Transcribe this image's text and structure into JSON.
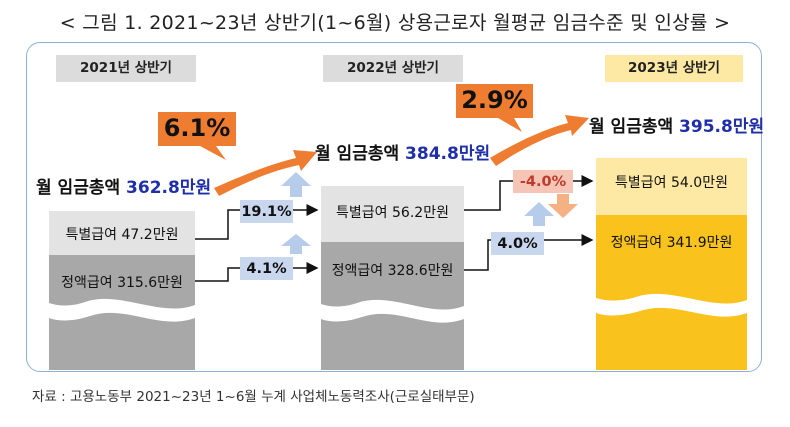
{
  "title": "< 그림 1. 2021~23년 상반기(1~6월) 상용근로자 월평균 임금수준 및 인상률 >",
  "source": "자료 : 고용노동부 2021~23년 1~6월 누계 사업체노동력조사(근로실태부문)",
  "total_prefix": "월 임금총액",
  "years": [
    {
      "label": "2021년 상반기",
      "total": "362.8만원",
      "special": "특별급여 47.2만원",
      "regular": "정액급여 315.6만원"
    },
    {
      "label": "2022년 상반기",
      "total": "384.8만원",
      "special": "특별급여 56.2만원",
      "regular": "정액급여 328.6만원"
    },
    {
      "label": "2023년 상반기",
      "total": "395.8만원",
      "special": "특별급여 54.0만원",
      "regular": "정액급여 341.9만원"
    }
  ],
  "changes": {
    "total_2122": "6.1%",
    "total_2223": "2.9%",
    "special_2122": "19.1%",
    "regular_2122": "4.1%",
    "special_2223": "-4.0%",
    "regular_2223": "4.0%"
  },
  "colors": {
    "light_gray": "#e3e3e3",
    "dark_gray": "#a8a8a8",
    "yellow_light": "#fde9a3",
    "yellow": "#f9c21c",
    "orange": "#ee7d31",
    "blue_box": "#c9d7ee",
    "pink_box": "#f5c5b5",
    "total_blue": "#1f2fa8",
    "frame_border": "#8fb0d8"
  }
}
